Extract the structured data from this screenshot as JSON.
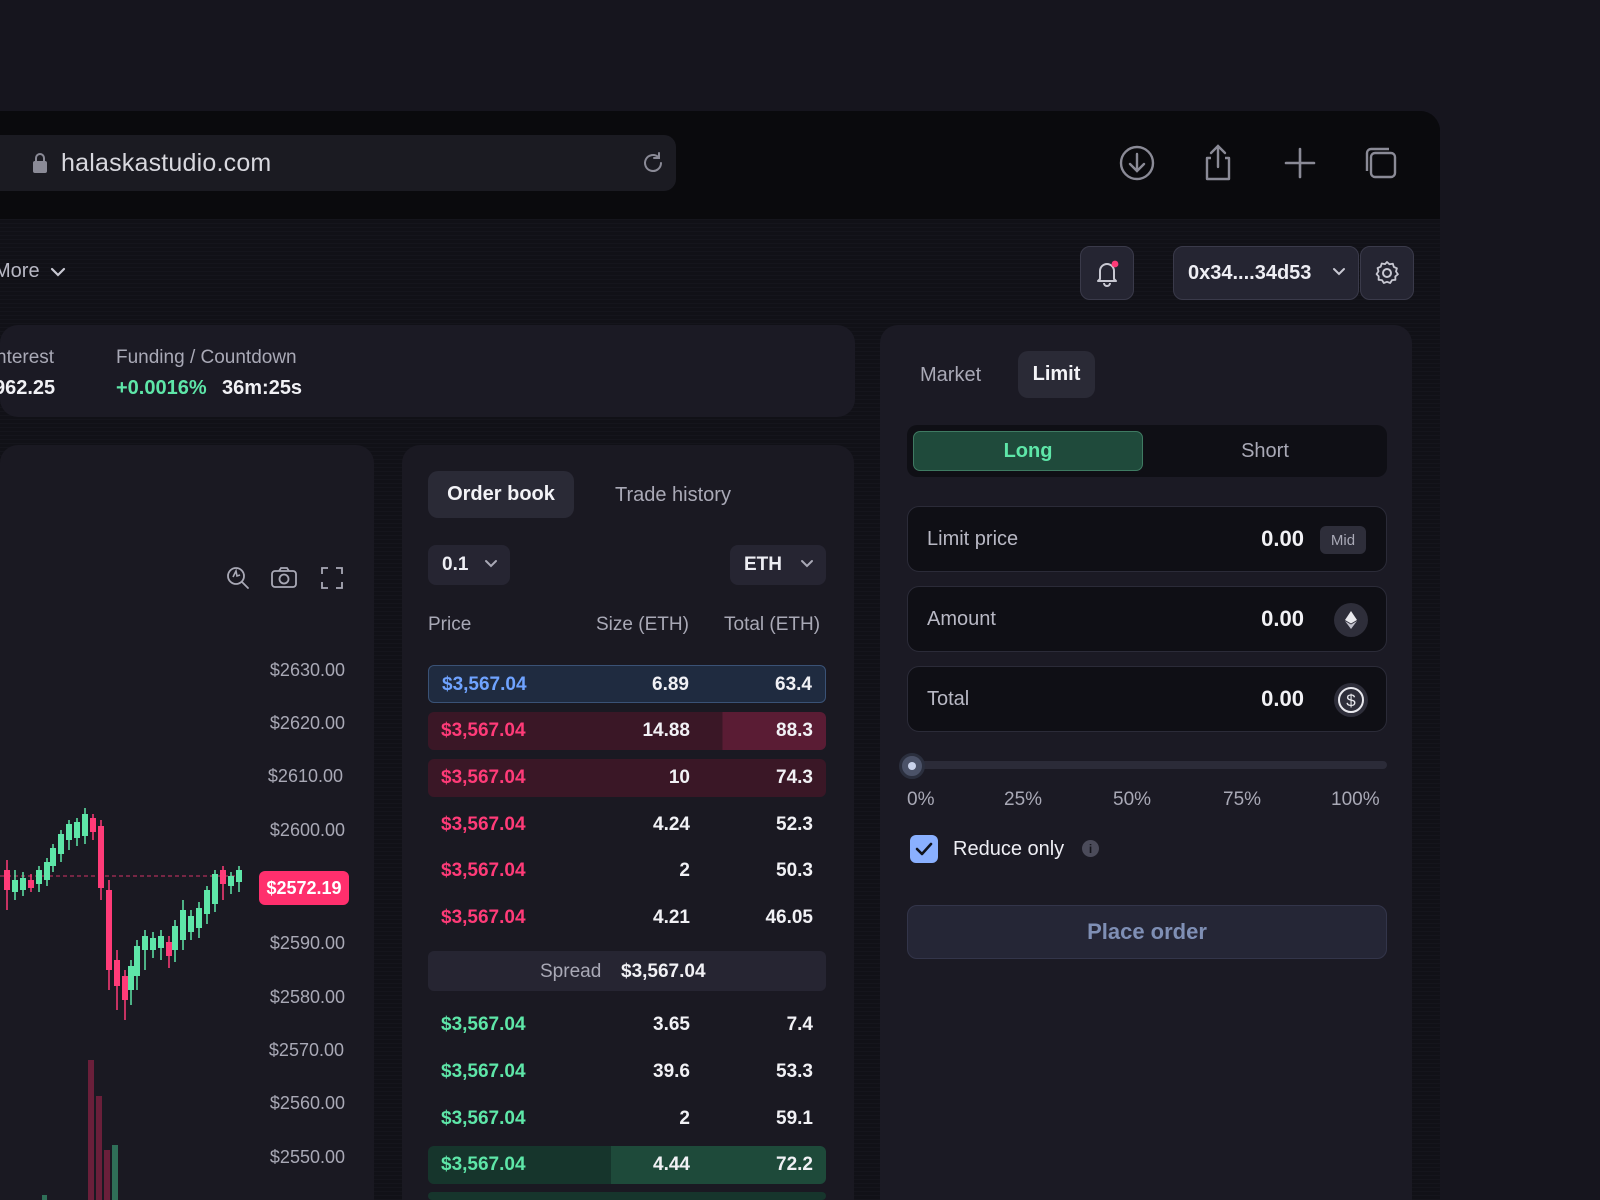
{
  "browser": {
    "url": "halaskastudio.com",
    "icons": [
      "lock-icon",
      "reload-icon",
      "download-icon",
      "share-icon",
      "new-tab-icon",
      "tabs-icon"
    ]
  },
  "nav": {
    "more_label": "More",
    "wallet": "0x34....34d53",
    "icons": [
      "bell-icon",
      "chevron-down-icon",
      "gear-icon"
    ]
  },
  "stats": {
    "open_interest_label": "nterest",
    "open_interest_value": "962.25",
    "funding_label": "Funding / Countdown",
    "funding_rate": "+0.0016%",
    "countdown": "36m:25s"
  },
  "chart": {
    "price_ticks": [
      "$2630.00",
      "$2620.00",
      "$2610.00",
      "$2600.00",
      "$2590.00",
      "$2580.00",
      "$2570.00",
      "$2560.00",
      "$2550.00"
    ],
    "current_price": "$2572.19",
    "tool_icons": [
      "indicator-icon",
      "camera-icon",
      "fullscreen-icon"
    ]
  },
  "orderbook": {
    "tabs": [
      "Order book",
      "Trade history"
    ],
    "tick_size": "0.1",
    "unit": "ETH",
    "headers": {
      "price": "Price",
      "size": "Size (ETH)",
      "total": "Total (ETH)"
    },
    "asks": [
      {
        "price": "$3,567.04",
        "size": "6.89",
        "total": "63.4"
      },
      {
        "price": "$3,567.04",
        "size": "14.88",
        "total": "88.3"
      },
      {
        "price": "$3,567.04",
        "size": "10",
        "total": "74.3"
      },
      {
        "price": "$3,567.04",
        "size": "4.24",
        "total": "52.3"
      },
      {
        "price": "$3,567.04",
        "size": "2",
        "total": "50.3"
      },
      {
        "price": "$3,567.04",
        "size": "4.21",
        "total": "46.05"
      }
    ],
    "spread_label": "Spread",
    "spread_value": "$3,567.04",
    "bids": [
      {
        "price": "$3,567.04",
        "size": "3.65",
        "total": "7.4"
      },
      {
        "price": "$3,567.04",
        "size": "39.6",
        "total": "53.3"
      },
      {
        "price": "$3,567.04",
        "size": "2",
        "total": "59.1"
      },
      {
        "price": "$3,567.04",
        "size": "4.44",
        "total": "72.2"
      }
    ]
  },
  "trade": {
    "order_types": [
      "Market",
      "Limit"
    ],
    "sides": [
      "Long",
      "Short"
    ],
    "limit_price": {
      "label": "Limit price",
      "value": "0.00",
      "badge": "Mid"
    },
    "amount": {
      "label": "Amount",
      "value": "0.00",
      "icon": "eth-icon"
    },
    "total": {
      "label": "Total",
      "value": "0.00",
      "icon": "dollar-coin-icon"
    },
    "slider_value": 0,
    "slider_marks": [
      "0%",
      "25%",
      "50%",
      "75%",
      "100%"
    ],
    "reduce_only": {
      "label": "Reduce only",
      "checked": true
    },
    "submit_label": "Place order"
  },
  "colors": {
    "bg": "#16151e",
    "panel": "#1b1a24",
    "green": "#5ee6a8",
    "red": "#ff3b78",
    "blue": "#6fa3ff",
    "accent": "#8ab0ff"
  }
}
